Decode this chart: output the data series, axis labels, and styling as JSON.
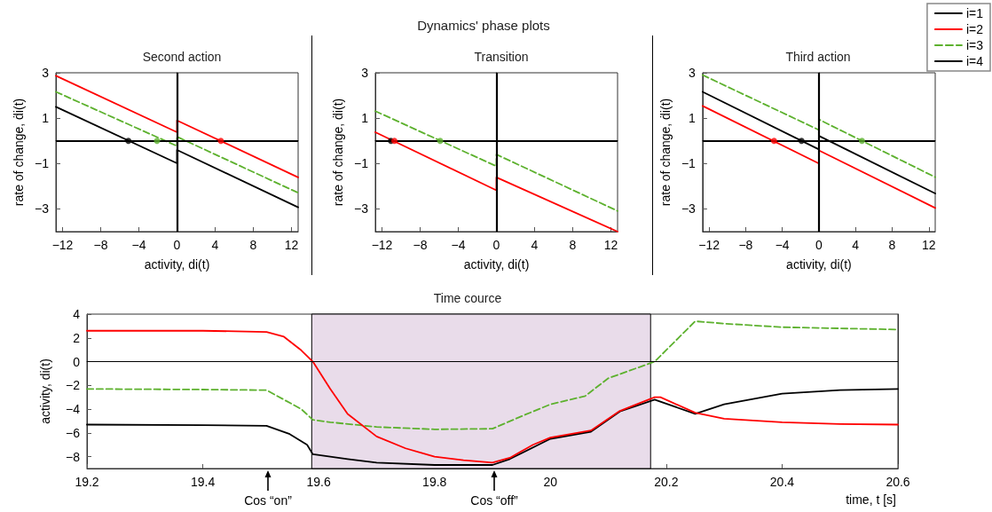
{
  "chart_data": [
    {
      "type": "line",
      "title": "Second action",
      "xlabel": "activity, di(t)",
      "ylabel": "rate of change, ḋi(t)",
      "xlim": [
        -12.7,
        12.7
      ],
      "ylim": [
        -4,
        3
      ],
      "xticks": [
        -12,
        -8,
        -4,
        0,
        4,
        8,
        12
      ],
      "yticks": [
        -3,
        -1,
        1,
        3
      ],
      "grid": false,
      "legend": false,
      "marker": "none",
      "annotations": [
        "Dynamics' phase plots"
      ],
      "ref_lines": [
        {
          "axis": "x",
          "value": 0,
          "color": "#000000"
        },
        {
          "axis": "y",
          "value": 0,
          "color": "#000000"
        }
      ],
      "series": [
        {
          "color": "#000000",
          "x": [
            -12.7,
            0,
            0,
            12.7
          ],
          "values": [
            1.5,
            -0.99,
            -0.4,
            -2.93
          ]
        },
        {
          "color": "#5db12e",
          "line_style": "dashed",
          "x": [
            -12.7,
            0,
            0,
            12.7
          ],
          "values": [
            2.16,
            -0.23,
            0.18,
            -2.29
          ]
        },
        {
          "color": "#ff0000",
          "x": [
            -12.7,
            0,
            0,
            12.7
          ],
          "values": [
            2.87,
            0.38,
            0.9,
            -1.61
          ]
        },
        {
          "type": "scatter",
          "marker": "circle",
          "color": "#000000",
          "x": [
            -5.1
          ],
          "values": [
            0
          ]
        },
        {
          "type": "scatter",
          "marker": "circle",
          "color": "#5db12e",
          "x": [
            -2.1
          ],
          "values": [
            0
          ]
        },
        {
          "type": "scatter",
          "marker": "circle",
          "color": "#ff0000",
          "x": [
            4.6
          ],
          "values": [
            0
          ]
        }
      ]
    },
    {
      "type": "line",
      "title": "Transition",
      "xlabel": "activity, di(t)",
      "ylabel": "rate of change, ḋi(t)",
      "xlim": [
        -12.7,
        12.7
      ],
      "ylim": [
        -4,
        3
      ],
      "xticks": [
        -12,
        -8,
        -4,
        0,
        4,
        8,
        12
      ],
      "yticks": [
        -3,
        -1,
        1,
        3
      ],
      "grid": false,
      "legend": false,
      "marker": "none",
      "ref_lines": [
        {
          "axis": "x",
          "value": 0,
          "color": "#000000"
        },
        {
          "axis": "y",
          "value": 0,
          "color": "#000000"
        }
      ],
      "series": [
        {
          "color": "#5db12e",
          "line_style": "dashed",
          "x": [
            -12.7,
            0,
            0,
            12.7
          ],
          "values": [
            1.31,
            -1.12,
            -0.6,
            -3.09
          ]
        },
        {
          "color": "#ff0000",
          "x": [
            -12.7,
            0,
            0,
            12.7
          ],
          "values": [
            0.38,
            -2.18,
            -1.61,
            -4.0
          ]
        },
        {
          "type": "scatter",
          "marker": "circle",
          "color": "#000000",
          "x": [
            -11.06
          ],
          "values": [
            0
          ]
        },
        {
          "type": "scatter",
          "marker": "circle",
          "color": "#5db12e",
          "x": [
            -5.9
          ],
          "values": [
            0
          ]
        },
        {
          "type": "scatter",
          "marker": "circle",
          "color": "#ff0000",
          "x": [
            -10.7
          ],
          "values": [
            0
          ]
        }
      ]
    },
    {
      "type": "line",
      "title": "Third action",
      "xlabel": "activity, di(t)",
      "ylabel": "rate of change, ḋi(t)",
      "xlim": [
        -12.7,
        12.7
      ],
      "ylim": [
        -4,
        3
      ],
      "xticks": [
        -12,
        -8,
        -4,
        0,
        4,
        8,
        12
      ],
      "yticks": [
        -3,
        -1,
        1,
        3
      ],
      "grid": false,
      "legend": "top right",
      "marker": "none",
      "ref_lines": [
        {
          "axis": "x",
          "value": 0,
          "color": "#000000"
        },
        {
          "axis": "y",
          "value": 0,
          "color": "#000000"
        }
      ],
      "series": [
        {
          "name": "i=1",
          "color": "#000000",
          "x": [
            -12.7,
            0,
            0,
            12.7
          ],
          "values": [
            2.16,
            -0.38,
            0.22,
            -2.32
          ]
        },
        {
          "name": "i=2",
          "color": "#ff0000",
          "x": [
            -12.7,
            0,
            0,
            12.7
          ],
          "values": [
            1.54,
            -1.0,
            -0.42,
            -2.96
          ]
        },
        {
          "name": "i=3",
          "color": "#5db12e",
          "line_style": "dashed",
          "x": [
            -12.7,
            0,
            0,
            12.7
          ],
          "values": [
            2.9,
            0.48,
            0.94,
            -1.6
          ]
        },
        {
          "name": "i=4",
          "color": "#000000"
        },
        {
          "type": "scatter",
          "marker": "circle",
          "color": "#ff0000",
          "x": [
            -4.9
          ],
          "values": [
            0
          ]
        },
        {
          "type": "scatter",
          "marker": "circle",
          "color": "#000000",
          "x": [
            -1.9
          ],
          "values": [
            0
          ]
        },
        {
          "type": "scatter",
          "marker": "circle",
          "color": "#5db12e",
          "x": [
            4.7
          ],
          "values": [
            0
          ]
        }
      ]
    },
    {
      "type": "line",
      "title": "Time cource",
      "xlabel": "time, t [s]",
      "ylabel": "activity, di(t)",
      "xlim": [
        19.2,
        20.6
      ],
      "ylim": [
        -9,
        4
      ],
      "xticks": [
        19.2,
        19.4,
        19.6,
        19.8,
        20,
        20.2,
        20.4,
        20.6
      ],
      "yticks": [
        -8,
        -6,
        -4,
        -2,
        0,
        2,
        4
      ],
      "grid": false,
      "legend": false,
      "marker": "none",
      "bands": [
        {
          "axis": "x",
          "from": 19.588,
          "to": 20.173,
          "color": "#e9dcea"
        }
      ],
      "ref_lines": [
        {
          "axis": "y",
          "value": 0,
          "color": "#000000"
        }
      ],
      "annotations": [
        "Cos “on”",
        "Cos “off”"
      ],
      "series": [
        {
          "color": "#000000",
          "x": [
            19.2,
            19.4,
            19.51,
            19.55,
            19.58,
            19.59,
            19.65,
            19.7,
            19.8,
            19.9,
            19.93,
            20.0,
            20.07,
            20.12,
            20.18,
            20.25,
            20.3,
            20.4,
            20.5,
            20.6
          ],
          "values": [
            -5.3,
            -5.35,
            -5.4,
            -6.1,
            -7.0,
            -7.8,
            -8.2,
            -8.5,
            -8.7,
            -8.7,
            -8.2,
            -6.5,
            -5.9,
            -4.2,
            -3.2,
            -4.4,
            -3.6,
            -2.7,
            -2.4,
            -2.3
          ]
        },
        {
          "color": "#5db12e",
          "line_style": "dashed",
          "x": [
            19.2,
            19.4,
            19.51,
            19.57,
            19.59,
            19.62,
            19.7,
            19.8,
            19.9,
            19.95,
            20.0,
            20.06,
            20.1,
            20.18,
            20.25,
            20.3,
            20.4,
            20.6
          ],
          "values": [
            -2.3,
            -2.35,
            -2.4,
            -4.0,
            -4.9,
            -5.1,
            -5.5,
            -5.7,
            -5.65,
            -4.6,
            -3.6,
            -2.9,
            -1.4,
            0,
            3.4,
            3.2,
            2.9,
            2.7
          ]
        },
        {
          "color": "#ff0000",
          "x": [
            19.2,
            19.4,
            19.51,
            19.54,
            19.57,
            19.59,
            19.62,
            19.65,
            19.7,
            19.75,
            19.8,
            19.85,
            19.9,
            19.93,
            19.97,
            20.0,
            20.07,
            20.12,
            20.18,
            20.19,
            20.25,
            20.3,
            20.4,
            20.5,
            20.6
          ],
          "values": [
            2.6,
            2.6,
            2.5,
            2.1,
            0.95,
            0,
            -2.3,
            -4.4,
            -6.3,
            -7.3,
            -8.0,
            -8.3,
            -8.5,
            -8.1,
            -7.0,
            -6.4,
            -5.8,
            -4.15,
            -3.0,
            -3.0,
            -4.3,
            -4.8,
            -5.1,
            -5.25,
            -5.3
          ]
        }
      ]
    }
  ]
}
